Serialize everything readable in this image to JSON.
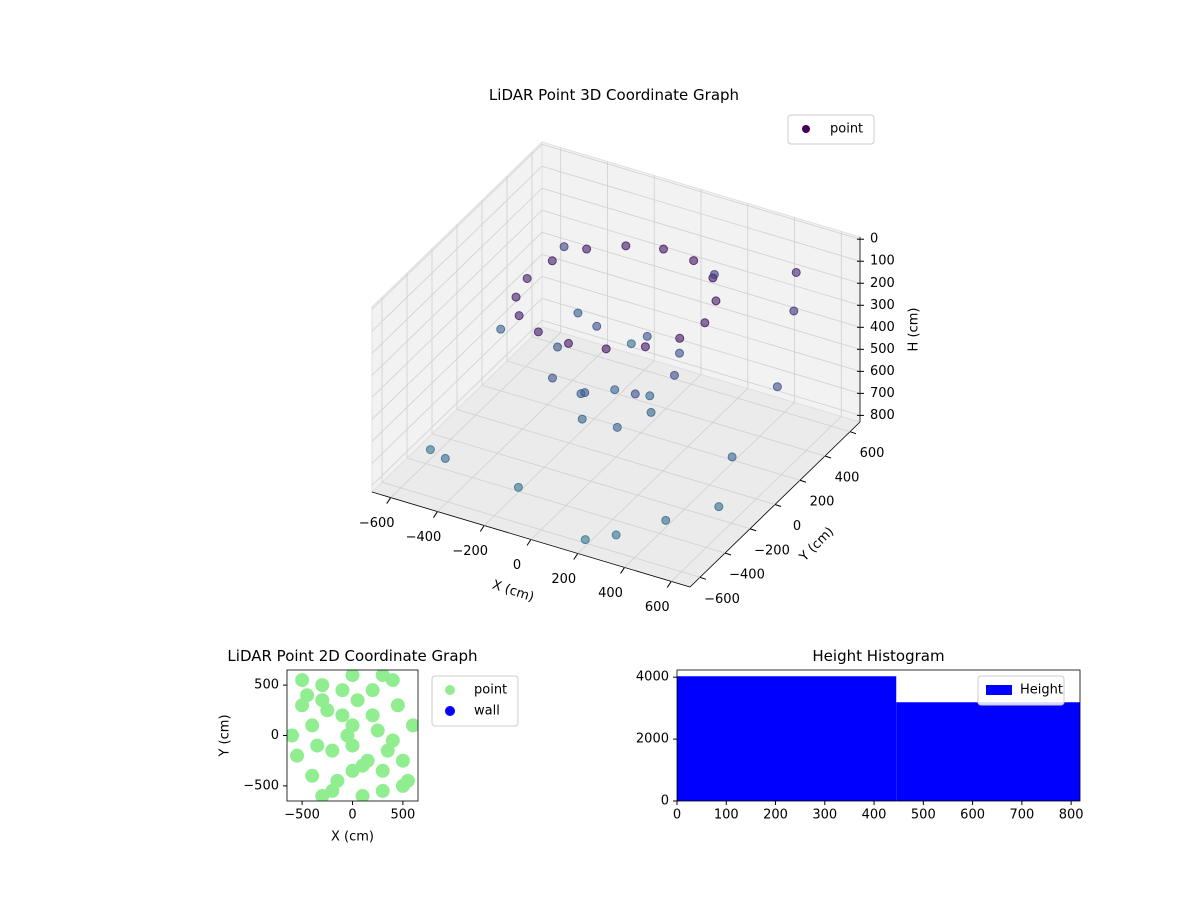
{
  "chart_data": [
    {
      "type": "scatter3d",
      "title": "LiDAR Point 3D Coordinate Graph",
      "xlabel": "X (cm)",
      "ylabel": "Y (cm)",
      "zlabel": "H (cm)",
      "xlim": [
        -680,
        680
      ],
      "ylim": [
        -680,
        680
      ],
      "zlim": [
        -10,
        830
      ],
      "z_inverted": true,
      "xticks": [
        {
          "value": -600,
          "label": "−600"
        },
        {
          "value": -400,
          "label": "−400"
        },
        {
          "value": -200,
          "label": "−200"
        },
        0,
        200,
        400,
        600
      ],
      "yticks": [
        {
          "value": -600,
          "label": "−600"
        },
        {
          "value": -400,
          "label": "−400"
        },
        {
          "value": -200,
          "label": "−200"
        },
        0,
        200,
        400,
        600
      ],
      "zticks": [
        0,
        100,
        200,
        300,
        400,
        500,
        600,
        700,
        800
      ],
      "grid": true,
      "legend": "upper right",
      "colormap": [
        "#440154",
        "#3b528b",
        "#31788e"
      ],
      "series": [
        {
          "name": "point",
          "color": "#440154",
          "x": [
            380,
            350,
            270,
            145,
            0,
            -145,
            -270,
            -350,
            -380,
            -350,
            -270,
            -145,
            0,
            145,
            270,
            350,
            250,
            177,
            0,
            -177,
            -250,
            -177,
            0,
            177,
            150,
            75,
            -75,
            -150,
            -75,
            75,
            520,
            600,
            -500,
            -580,
            450,
            -420,
            300,
            -250,
            610,
            -600,
            200,
            -150,
            480,
            -350,
            550,
            100
          ],
          "y": [
            0,
            145,
            270,
            350,
            380,
            350,
            270,
            145,
            0,
            -145,
            -270,
            -350,
            -380,
            -350,
            -270,
            -145,
            0,
            177,
            250,
            177,
            0,
            -177,
            -250,
            -177,
            0,
            130,
            130,
            0,
            -130,
            -130,
            450,
            -300,
            520,
            -400,
            600,
            -580,
            -560,
            590,
            150,
            200,
            -620,
            -500,
            -500,
            350,
            -100,
            600
          ],
          "z": [
            100,
            90,
            80,
            85,
            95,
            110,
            120,
            130,
            140,
            135,
            125,
            115,
            105,
            100,
            95,
            100,
            380,
            400,
            420,
            390,
            410,
            430,
            400,
            390,
            580,
            600,
            620,
            590,
            610,
            600,
            250,
            700,
            320,
            760,
            180,
            650,
            780,
            720,
            400,
            550,
            800,
            740,
            690,
            480,
            600,
            300
          ]
        }
      ]
    },
    {
      "type": "scatter",
      "title": "LiDAR Point 2D Coordinate Graph",
      "xlabel": "X (cm)",
      "ylabel": "Y (cm)",
      "xlim": [
        -650,
        650
      ],
      "ylim": [
        -650,
        650
      ],
      "xticks": [
        {
          "value": -500,
          "label": "−500"
        },
        0,
        500
      ],
      "yticks": [
        {
          "value": -500,
          "label": "−500"
        },
        0,
        500
      ],
      "legend": "outside upper right",
      "series": [
        {
          "name": "point",
          "color": "#90ee90",
          "x": [
            -600,
            -500,
            -400,
            -300,
            -200,
            -100,
            0,
            100,
            200,
            300,
            400,
            500,
            600,
            -550,
            -450,
            -350,
            -250,
            -150,
            -50,
            50,
            150,
            250,
            350,
            450,
            550,
            -500,
            -300,
            -100,
            100,
            300,
            500,
            -400,
            -200,
            0,
            200,
            400,
            -300,
            0,
            300,
            0
          ],
          "y": [
            0,
            300,
            -400,
            500,
            -550,
            200,
            600,
            -600,
            450,
            -350,
            550,
            -500,
            100,
            -200,
            400,
            -100,
            250,
            -450,
            0,
            350,
            -250,
            50,
            -150,
            300,
            -450,
            550,
            -600,
            450,
            -300,
            600,
            -250,
            100,
            -150,
            -350,
            200,
            -50,
            350,
            100,
            -550,
            -100
          ]
        },
        {
          "name": "wall",
          "color": "#0000ff",
          "x": [],
          "y": []
        }
      ]
    },
    {
      "type": "histogram",
      "title": "Height Histogram",
      "bins": [
        0,
        445,
        818
      ],
      "xlim": [
        0,
        818
      ],
      "ylim": [
        0,
        4232
      ],
      "xticks": [
        0,
        100,
        200,
        300,
        400,
        500,
        600,
        700,
        800
      ],
      "yticks": [
        0,
        2000,
        4000
      ],
      "legend": "upper right",
      "series": [
        {
          "name": "Height",
          "color": "#0000ff",
          "values": [
            4030,
            3190
          ]
        }
      ]
    }
  ]
}
